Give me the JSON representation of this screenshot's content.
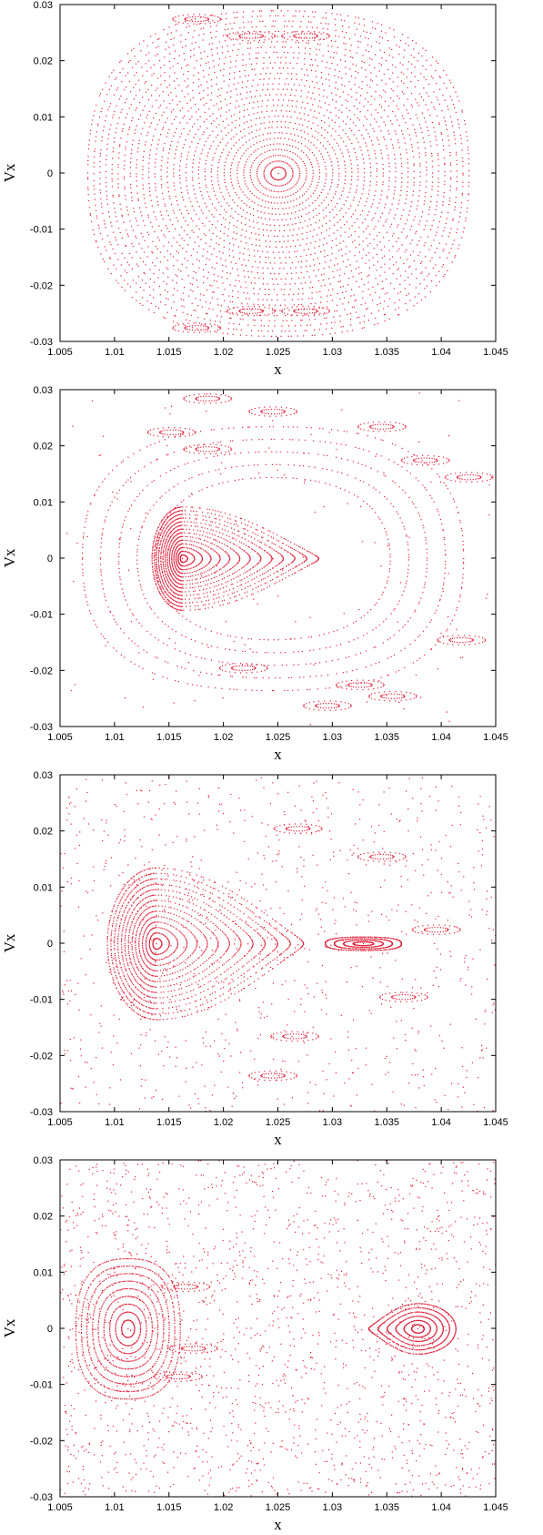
{
  "colors": {
    "points": "#e0203a",
    "axes": "#000000",
    "background": "#ffffff"
  },
  "chart_data": [
    {
      "type": "scatter",
      "panel": 1,
      "xlabel": "x",
      "ylabel": "Vx",
      "xlim": [
        1.005,
        1.045
      ],
      "ylim": [
        -0.03,
        0.03
      ],
      "xticks": [
        1.005,
        1.01,
        1.015,
        1.02,
        1.025,
        1.03,
        1.035,
        1.04,
        1.045
      ],
      "xtick_labels": [
        "1.005",
        "1.01",
        "1.015",
        "1.02",
        "1.025",
        "1.03",
        "1.035",
        "1.04",
        "1.045"
      ],
      "yticks": [
        0.03,
        0.02,
        0.01,
        0,
        -0.01,
        -0.02,
        -0.03
      ],
      "ytick_labels": [
        "0.03",
        "0.02",
        "0.01",
        "0",
        "-0.01",
        "-0.02",
        "-0.03"
      ],
      "islands": [
        {
          "cx": 1.025,
          "cy": 0,
          "rx_max": 0.0175,
          "ry_max": 0.029,
          "rings": 30,
          "shape": "ellipse"
        }
      ],
      "chains": [
        {
          "x": 1.0225,
          "y": 0.0245
        },
        {
          "x": 1.0275,
          "y": 0.0245
        },
        {
          "x": 1.0225,
          "y": -0.0245
        },
        {
          "x": 1.0275,
          "y": -0.0245
        },
        {
          "x": 1.0175,
          "y": 0.0275
        },
        {
          "x": 1.0175,
          "y": -0.0275
        }
      ],
      "scatter_density": 0
    },
    {
      "type": "scatter",
      "panel": 2,
      "xlabel": "x",
      "ylabel": "Vx",
      "xlim": [
        1.005,
        1.045
      ],
      "ylim": [
        -0.03,
        0.03
      ],
      "xticks": [
        1.005,
        1.01,
        1.015,
        1.02,
        1.025,
        1.03,
        1.035,
        1.04,
        1.045
      ],
      "xtick_labels": [
        "1.005",
        "1.01",
        "1.015",
        "1.02",
        "1.025",
        "1.03",
        "1.035",
        "1.04",
        "1.045"
      ],
      "yticks": [
        0.03,
        0.02,
        0.01,
        0,
        -0.01,
        -0.02,
        -0.03
      ],
      "ytick_labels": [
        "0.03",
        "0.02",
        "0.01",
        "0",
        "-0.01",
        "-0.02",
        "-0.03"
      ],
      "islands": [
        {
          "cx": 1.0162,
          "cy": 0,
          "rx_left": 0.0028,
          "rx_right": 0.0125,
          "ry": 0.0092,
          "rings": 14,
          "shape": "teardrop"
        },
        {
          "cx": 1.0245,
          "cy": 0,
          "rx_max": 0.0175,
          "ry_max": 0.0235,
          "rings": 10,
          "shape": "ellipse",
          "inner_skip": 0.55
        }
      ],
      "chains": [
        {
          "x": 1.0185,
          "y": 0.0285
        },
        {
          "x": 1.0345,
          "y": 0.0235
        },
        {
          "x": 1.0385,
          "y": 0.0175
        },
        {
          "x": 1.0418,
          "y": -0.0145
        },
        {
          "x": 1.0325,
          "y": -0.0225
        },
        {
          "x": 1.0218,
          "y": -0.0195
        },
        {
          "x": 1.0185,
          "y": 0.0195
        },
        {
          "x": 1.0355,
          "y": -0.0245
        },
        {
          "x": 1.0152,
          "y": 0.0225
        },
        {
          "x": 1.0245,
          "y": 0.0262
        },
        {
          "x": 1.0295,
          "y": -0.0262
        },
        {
          "x": 1.0425,
          "y": 0.0145
        }
      ],
      "scatter_density": 120
    },
    {
      "type": "scatter",
      "panel": 3,
      "xlabel": "x",
      "ylabel": "Vx",
      "xlim": [
        1.005,
        1.045
      ],
      "ylim": [
        -0.03,
        0.03
      ],
      "xticks": [
        1.005,
        1.01,
        1.015,
        1.02,
        1.025,
        1.03,
        1.035,
        1.04,
        1.045
      ],
      "xtick_labels": [
        "1.005",
        "1.01",
        "1.015",
        "1.02",
        "1.025",
        "1.03",
        "1.035",
        "1.04",
        "1.045"
      ],
      "yticks": [
        0.03,
        0.02,
        0.01,
        0,
        -0.01,
        -0.02,
        -0.03
      ],
      "ytick_labels": [
        "0.03",
        "0.02",
        "0.01",
        "0",
        "-0.01",
        "-0.02",
        "-0.03"
      ],
      "islands": [
        {
          "cx": 1.0138,
          "cy": 0,
          "rx_left": 0.0045,
          "rx_right": 0.0135,
          "ry": 0.0135,
          "rings": 14,
          "shape": "teardrop"
        },
        {
          "cx": 1.0328,
          "cy": 0,
          "rx_max": 0.0035,
          "ry_max": 0.0012,
          "rings": 4,
          "shape": "ellipse"
        }
      ],
      "chains": [
        {
          "x": 1.0268,
          "y": 0.0205
        },
        {
          "x": 1.0345,
          "y": 0.0155
        },
        {
          "x": 1.0365,
          "y": -0.0095
        },
        {
          "x": 1.0265,
          "y": -0.0165
        },
        {
          "x": 1.0245,
          "y": -0.0235
        },
        {
          "x": 1.0395,
          "y": 0.0025
        }
      ],
      "scatter_density": 900
    },
    {
      "type": "scatter",
      "panel": 4,
      "xlabel": "x",
      "ylabel": "Vx",
      "xlim": [
        1.005,
        1.045
      ],
      "ylim": [
        -0.03,
        0.03
      ],
      "xticks": [
        1.005,
        1.01,
        1.015,
        1.02,
        1.025,
        1.03,
        1.035,
        1.04,
        1.045
      ],
      "xtick_labels": [
        "1.005",
        "1.01",
        "1.015",
        "1.02",
        "1.025",
        "1.03",
        "1.035",
        "1.04",
        "1.045"
      ],
      "yticks": [
        0.03,
        0.02,
        0.01,
        0,
        -0.01,
        -0.02,
        -0.03
      ],
      "ytick_labels": [
        "0.03",
        "0.02",
        "0.01",
        "0",
        "-0.01",
        "-0.02",
        "-0.03"
      ],
      "islands": [
        {
          "cx": 1.0112,
          "cy": 0,
          "rx_max": 0.0048,
          "ry_max": 0.0125,
          "rings": 9,
          "shape": "ellipse"
        },
        {
          "cx": 1.0378,
          "cy": 0,
          "rx_left": 0.0045,
          "rx_right": 0.0035,
          "ry": 0.0045,
          "rings": 6,
          "shape": "teardrop_rev"
        }
      ],
      "chains": [
        {
          "x": 1.0172,
          "y": -0.0035
        },
        {
          "x": 1.0165,
          "y": 0.0075
        },
        {
          "x": 1.0158,
          "y": -0.0085
        }
      ],
      "scatter_density": 1800
    }
  ]
}
